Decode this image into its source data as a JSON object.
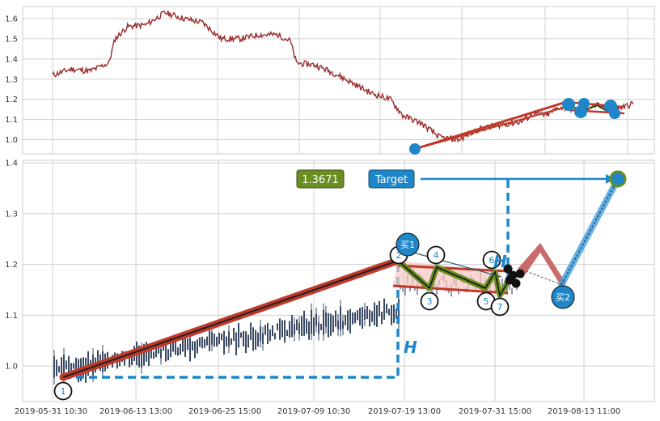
{
  "colors": {
    "price_line": "#9a2b2b",
    "trend_red": "#c0392b",
    "pivot_blue": "#1f86c8",
    "dash_blue": "#1f86c8",
    "olive": "#6b8e23",
    "pink_fill": "#f6c8c0",
    "candle": "#3a4a63",
    "grid": "#d0d0d0"
  },
  "chart_data": [
    {
      "type": "line",
      "name": "top-price",
      "ylim": [
        0.93,
        1.66
      ],
      "yticks": [
        "1.0",
        "1.1",
        "1.2",
        "1.3",
        "1.4",
        "1.5",
        "1.6"
      ],
      "ytick_values": [
        1.0,
        1.1,
        1.2,
        1.3,
        1.4,
        1.5,
        1.6
      ],
      "x_start": "2019-05-31",
      "x_end": "2019-08-20",
      "anchors": [
        [
          "2019-05-31",
          1.32
        ],
        [
          "2019-06-03",
          1.35
        ],
        [
          "2019-06-06",
          1.34
        ],
        [
          "2019-06-09",
          1.38
        ],
        [
          "2019-06-10",
          1.5
        ],
        [
          "2019-06-12",
          1.56
        ],
        [
          "2019-06-15",
          1.57
        ],
        [
          "2019-06-18",
          1.63
        ],
        [
          "2019-06-21",
          1.6
        ],
        [
          "2019-06-24",
          1.58
        ],
        [
          "2019-06-27",
          1.5
        ],
        [
          "2019-06-30",
          1.5
        ],
        [
          "2019-07-03",
          1.52
        ],
        [
          "2019-07-06",
          1.52
        ],
        [
          "2019-07-08",
          1.49
        ],
        [
          "2019-07-09",
          1.38
        ],
        [
          "2019-07-12",
          1.37
        ],
        [
          "2019-07-15",
          1.33
        ],
        [
          "2019-07-18",
          1.28
        ],
        [
          "2019-07-21",
          1.23
        ],
        [
          "2019-07-24",
          1.2
        ],
        [
          "2019-07-26",
          1.12
        ],
        [
          "2019-07-29",
          1.08
        ],
        [
          "2019-08-01",
          1.01
        ],
        [
          "2019-08-04",
          1.0
        ],
        [
          "2019-08-07",
          1.05
        ],
        [
          "2019-08-10",
          1.07
        ],
        [
          "2019-08-12",
          1.08
        ],
        [
          "2019-08-14",
          1.09
        ],
        [
          "2019-08-16",
          1.13
        ],
        [
          "2019-08-18",
          1.12
        ],
        [
          "2019-08-20",
          1.16
        ],
        [
          "2019-08-23",
          1.15
        ],
        [
          "2019-08-26",
          1.17
        ],
        [
          "2019-08-29",
          1.15
        ],
        [
          "2019-09-01",
          1.18
        ]
      ],
      "trend_upper": [
        [
          "2019-08-01",
          0.97
        ],
        [
          "2019-08-25",
          1.18
        ]
      ],
      "channel": [
        [
          "2019-08-25",
          1.18
        ],
        [
          "2019-09-01",
          1.16
        ]
      ],
      "pivots": [
        1.18,
        1.17,
        1.16
      ]
    },
    {
      "type": "candlestick",
      "name": "bottom-price",
      "ylim": [
        0.93,
        1.405
      ],
      "yticks": [
        "1.0",
        "1.1",
        "1.2",
        "1.3",
        "1.4"
      ],
      "ytick_values": [
        1.0,
        1.1,
        1.2,
        1.3,
        1.4
      ],
      "xticks": [
        "2019-05-31 10:30",
        "2019-06-13 13:00",
        "2019-06-25 15:00",
        "2019-07-09 10:30",
        "2019-07-19 13:00",
        "2019-07-31 15:00",
        "2019-08-13 11:00"
      ],
      "value_box": "1.3671",
      "target_label": "Target",
      "target_value": 1.3671,
      "h_label": "H",
      "points": [
        {
          "id": "1",
          "y": 0.97
        },
        {
          "id": "2",
          "y": 1.19
        },
        {
          "id": "3",
          "y": 1.15
        },
        {
          "id": "4",
          "y": 1.183
        },
        {
          "id": "5",
          "y": 1.15
        },
        {
          "id": "6",
          "y": 1.18
        },
        {
          "id": "7",
          "y": 1.14
        }
      ],
      "buy_labels": [
        "买1",
        "买2"
      ],
      "buy2_value": 1.135,
      "target_point_value": 1.367
    }
  ]
}
